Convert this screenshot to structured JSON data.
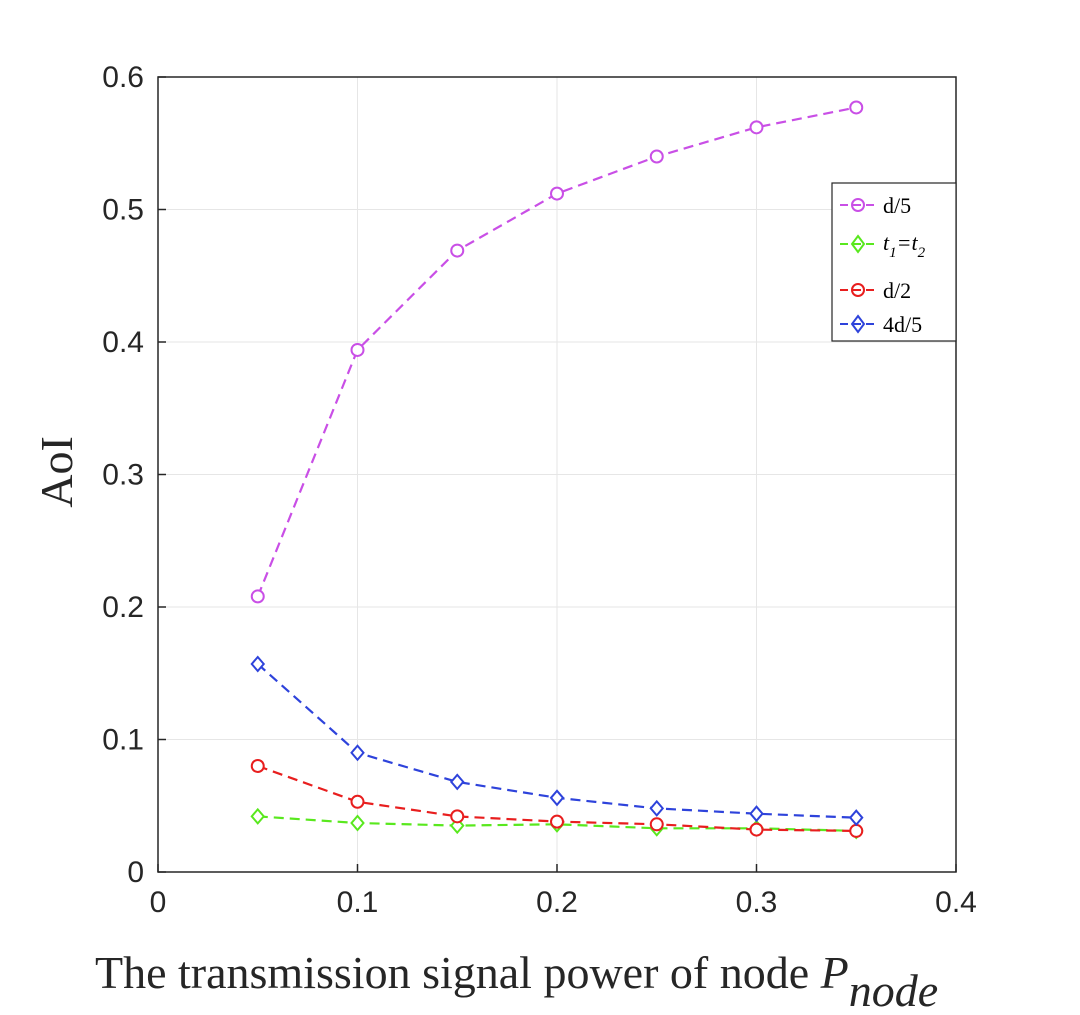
{
  "chart_data": {
    "type": "line",
    "x": [
      0.05,
      0.1,
      0.15,
      0.2,
      0.25,
      0.3,
      0.35
    ],
    "xlim": [
      0,
      0.4
    ],
    "ylim": [
      0,
      0.6
    ],
    "xticks": [
      "0",
      "0.1",
      "0.2",
      "0.3",
      "0.4"
    ],
    "yticks": [
      "0",
      "0.1",
      "0.2",
      "0.3",
      "0.4",
      "0.5",
      "0.6"
    ],
    "xlabel": "The transmission signal power of node ",
    "xlabel_symbol": "P",
    "xlabel_subscript": "node",
    "ylabel": "AoI",
    "grid": true,
    "legend_position": "top-right",
    "series": [
      {
        "name": "d/5",
        "color": "#c94fe6",
        "marker": "circle",
        "values": [
          0.208,
          0.394,
          0.469,
          0.512,
          0.54,
          0.562,
          0.577
        ]
      },
      {
        "name": "t1=t2",
        "label_parts": [
          "t",
          "1",
          "=t",
          "2"
        ],
        "color": "#59e81e",
        "marker": "diamond",
        "values": [
          0.042,
          0.037,
          0.035,
          0.036,
          0.033,
          0.033,
          0.031
        ]
      },
      {
        "name": "d/2",
        "color": "#e81e1e",
        "marker": "circle",
        "values": [
          0.08,
          0.053,
          0.042,
          0.038,
          0.036,
          0.032,
          0.031
        ]
      },
      {
        "name": "4d/5",
        "color": "#2e43db",
        "marker": "diamond",
        "values": [
          0.157,
          0.09,
          0.068,
          0.056,
          0.048,
          0.044,
          0.041
        ]
      }
    ]
  }
}
